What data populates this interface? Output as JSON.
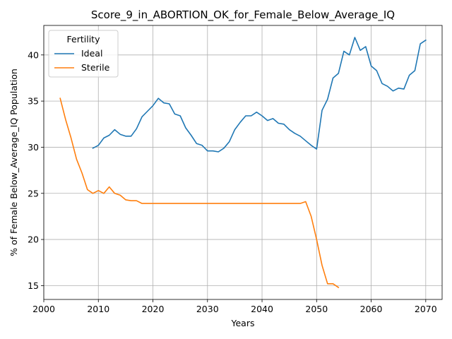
{
  "chart_data": {
    "type": "line",
    "title": "Score_9_in_ABORTION_OK_for_Female_Below_Average_IQ",
    "xlabel": "Years",
    "ylabel": "% of Female Below_Average_IQ Population",
    "xlim": [
      2000,
      2073
    ],
    "ylim": [
      13.5,
      43.2
    ],
    "xticks": [
      2000,
      2010,
      2020,
      2030,
      2040,
      2050,
      2060,
      2070
    ],
    "yticks": [
      15,
      20,
      25,
      30,
      35,
      40
    ],
    "grid": true,
    "legend": {
      "title": "Fertility",
      "placement": "top-left"
    },
    "series": [
      {
        "name": "Ideal",
        "color": "#1f77b4",
        "x": [
          2009,
          2010,
          2011,
          2012,
          2013,
          2014,
          2015,
          2016,
          2017,
          2018,
          2019,
          2020,
          2021,
          2022,
          2023,
          2024,
          2025,
          2026,
          2027,
          2028,
          2029,
          2030,
          2031,
          2032,
          2033,
          2034,
          2035,
          2036,
          2037,
          2038,
          2039,
          2040,
          2041,
          2042,
          2043,
          2044,
          2045,
          2046,
          2047,
          2048,
          2049,
          2050,
          2051,
          2052,
          2053,
          2054,
          2055,
          2056,
          2057,
          2058,
          2059,
          2060,
          2061,
          2062,
          2063,
          2064,
          2065,
          2066,
          2067,
          2068,
          2069,
          2070
        ],
        "y": [
          29.9,
          30.2,
          31.0,
          31.3,
          31.9,
          31.4,
          31.2,
          31.2,
          32.0,
          33.3,
          33.9,
          34.5,
          35.3,
          34.8,
          34.7,
          33.6,
          33.4,
          32.1,
          31.3,
          30.4,
          30.2,
          29.6,
          29.6,
          29.5,
          29.9,
          30.6,
          31.9,
          32.7,
          33.4,
          33.4,
          33.8,
          33.4,
          32.9,
          33.1,
          32.6,
          32.5,
          31.9,
          31.5,
          31.2,
          30.7,
          30.2,
          29.8,
          34.0,
          35.2,
          37.5,
          38.0,
          40.4,
          40.0,
          41.9,
          40.5,
          40.9,
          38.8,
          38.3,
          36.9,
          36.6,
          36.1,
          36.4,
          36.3,
          37.8,
          38.3,
          41.2,
          41.6
        ]
      },
      {
        "name": "Sterile",
        "color": "#ff7f0e",
        "x": [
          2003,
          2004,
          2005,
          2006,
          2007,
          2008,
          2009,
          2010,
          2011,
          2012,
          2013,
          2014,
          2015,
          2016,
          2017,
          2018,
          2019,
          2020,
          2021,
          2022,
          2023,
          2024,
          2025,
          2026,
          2027,
          2028,
          2029,
          2030,
          2031,
          2032,
          2033,
          2034,
          2035,
          2036,
          2037,
          2038,
          2039,
          2040,
          2041,
          2042,
          2043,
          2044,
          2045,
          2046,
          2047,
          2048,
          2049,
          2050,
          2051,
          2052,
          2053,
          2054
        ],
        "y": [
          35.3,
          33.0,
          31.0,
          28.7,
          27.2,
          25.4,
          25.0,
          25.3,
          25.0,
          25.7,
          25.0,
          24.8,
          24.3,
          24.2,
          24.2,
          23.9,
          23.9,
          23.9,
          23.9,
          23.9,
          23.9,
          23.9,
          23.9,
          23.9,
          23.9,
          23.9,
          23.9,
          23.9,
          23.9,
          23.9,
          23.9,
          23.9,
          23.9,
          23.9,
          23.9,
          23.9,
          23.9,
          23.9,
          23.9,
          23.9,
          23.9,
          23.9,
          23.9,
          23.9,
          23.9,
          24.1,
          22.5,
          20.0,
          17.2,
          15.2,
          15.2,
          14.8
        ]
      }
    ]
  }
}
